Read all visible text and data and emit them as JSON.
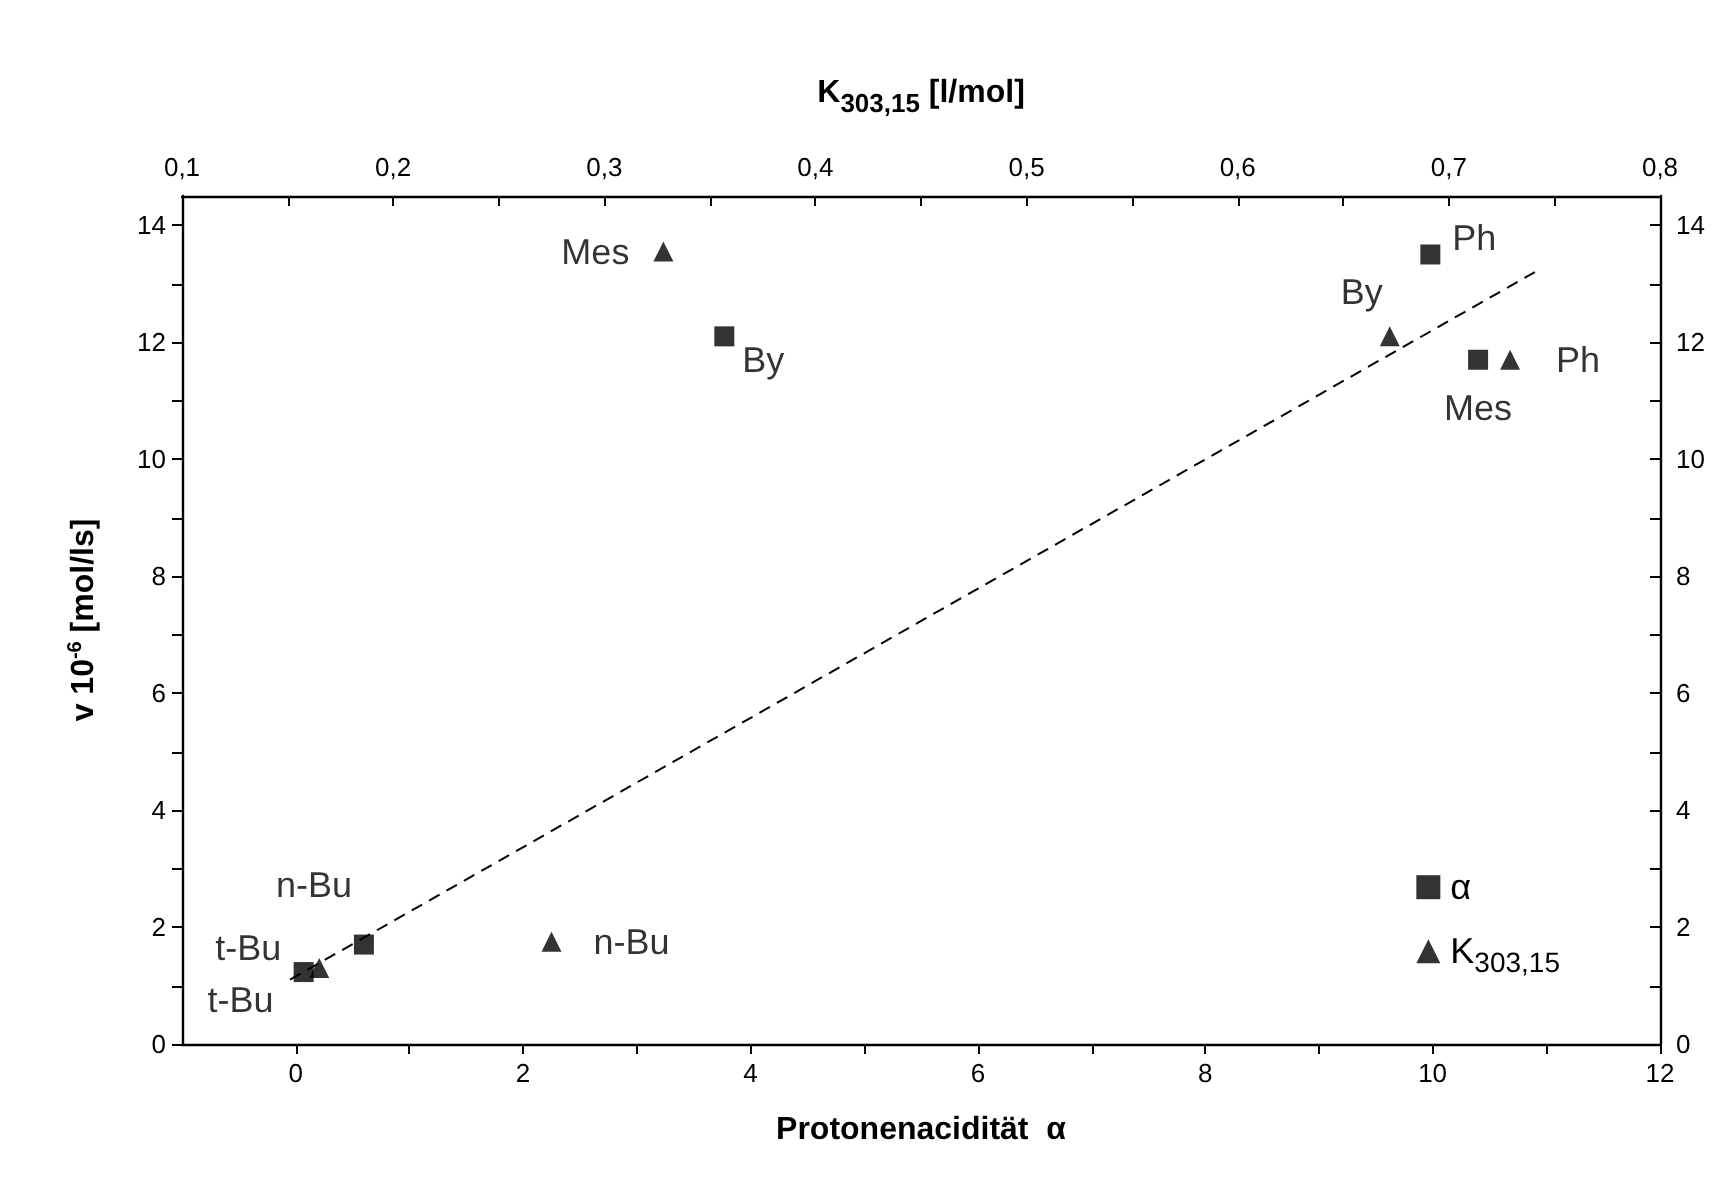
{
  "chart_data": {
    "type": "scatter",
    "xlabel": "Protonenacidität  α",
    "ylabel": "v 10$^{-6}$ [mol/ls]",
    "x2label": "K$_{303,15}$ [l/mol]",
    "xlim": [
      -1,
      12
    ],
    "xticks": [
      0,
      {
        "value": 1,
        "label": null
      },
      2,
      {
        "value": 3,
        "label": null
      },
      4,
      {
        "value": 5,
        "label": null
      },
      6,
      {
        "value": 7,
        "label": null
      },
      8,
      {
        "value": 9,
        "label": null
      },
      10,
      {
        "value": 11,
        "label": null
      },
      12
    ],
    "x2lim": [
      0.1,
      0.8
    ],
    "x2ticks": [
      {
        "value": 0.1,
        "label": "0,1"
      },
      {
        "value": 0.15,
        "label": null
      },
      {
        "value": 0.2,
        "label": "0,2"
      },
      {
        "value": 0.25,
        "label": null
      },
      {
        "value": 0.3,
        "label": "0,3"
      },
      {
        "value": 0.35,
        "label": null
      },
      {
        "value": 0.4,
        "label": "0,4"
      },
      {
        "value": 0.45,
        "label": null
      },
      {
        "value": 0.5,
        "label": "0,5"
      },
      {
        "value": 0.55,
        "label": null
      },
      {
        "value": 0.6,
        "label": "0,6"
      },
      {
        "value": 0.65,
        "label": null
      },
      {
        "value": 0.7,
        "label": "0,7"
      },
      {
        "value": 0.75,
        "label": null
      },
      {
        "value": 0.8,
        "label": "0,8"
      }
    ],
    "ylim": [
      0,
      14.5
    ],
    "yticks": [
      0,
      {
        "value": 1,
        "label": null
      },
      2,
      {
        "value": 3,
        "label": null
      },
      4,
      {
        "value": 5,
        "label": null
      },
      6,
      {
        "value": 7,
        "label": null
      },
      8,
      {
        "value": 9,
        "label": null
      },
      10,
      {
        "value": 11,
        "label": null
      },
      12,
      {
        "value": 13,
        "label": null
      },
      14
    ],
    "y2lim": [
      0,
      14.5
    ],
    "y2ticks": [
      0,
      {
        "value": 1,
        "label": null
      },
      2,
      {
        "value": 3,
        "label": null
      },
      4,
      {
        "value": 5,
        "label": null
      },
      6,
      {
        "value": 7,
        "label": null
      },
      8,
      {
        "value": 9,
        "label": null
      },
      10,
      {
        "value": 11,
        "label": null
      },
      12,
      {
        "value": 13,
        "label": null
      },
      14
    ],
    "series": [
      {
        "name": "α",
        "marker": "square",
        "color": "#000000",
        "x": [
          0.07,
          0.6,
          3.77,
          9.98,
          10.4
        ],
        "values": [
          1.23,
          1.7,
          12.1,
          13.5,
          11.7
        ],
        "value_labels": [
          "t-Bu",
          "n-Bu",
          "By",
          "Ph",
          "Mes"
        ]
      },
      {
        "name": "K$_{303,15}$",
        "axis": "x2",
        "marker": "triangle",
        "color": "#000000",
        "x": [
          0.165,
          0.275,
          0.328,
          0.672,
          0.729
        ],
        "values": [
          1.3,
          1.75,
          13.55,
          12.1,
          11.7
        ],
        "value_labels": [
          "t-Bu",
          "n-Bu",
          "Mes",
          "By",
          "Ph"
        ]
      },
      {
        "type": "line",
        "line_style": "dashed",
        "color": "#000000",
        "x": [
          -0.05,
          10.9
        ],
        "values": [
          1.1,
          13.2
        ]
      }
    ],
    "legend": "bottom right",
    "grid": false
  }
}
